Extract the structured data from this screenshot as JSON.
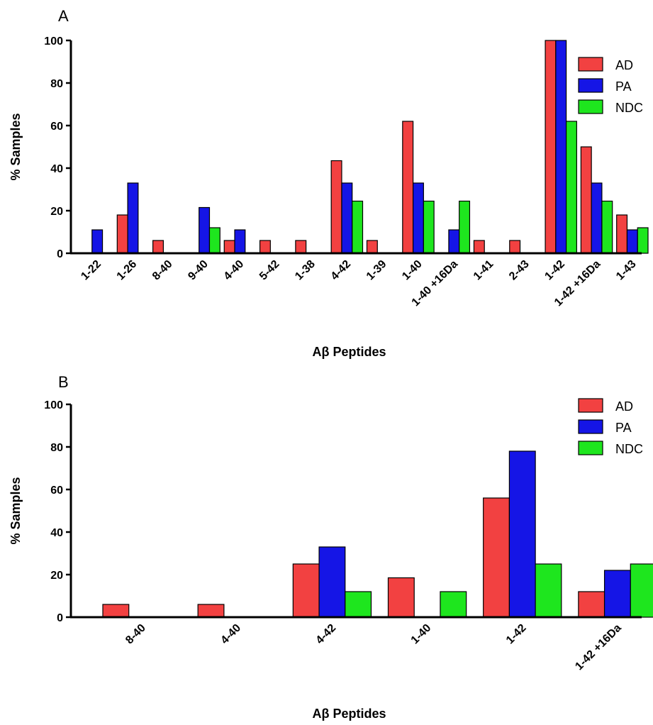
{
  "chart_data": [
    {
      "type": "bar",
      "panel_label": "A",
      "xlabel": "Aβ Peptides",
      "ylabel": "% Samples",
      "ylim": [
        0,
        100
      ],
      "yticks": [
        0,
        20,
        40,
        60,
        80,
        100
      ],
      "legend_position": "top-right",
      "categories": [
        "1-22",
        "1-26",
        "8-40",
        "9-40",
        "4-40",
        "5-42",
        "1-38",
        "4-42",
        "1-39",
        "1-40",
        "1-40 +16Da",
        "1-41",
        "2-43",
        "1-42",
        "1-42 +16Da",
        "1-43"
      ],
      "series": [
        {
          "name": "AD",
          "color": "#f24141",
          "values": [
            0,
            18,
            6,
            0,
            6,
            6,
            6,
            43.5,
            6,
            62,
            0,
            6,
            6,
            100,
            50,
            18
          ]
        },
        {
          "name": "PA",
          "color": "#1515e6",
          "values": [
            11,
            33,
            0,
            21.5,
            11,
            0,
            0,
            33,
            0,
            33,
            11,
            0,
            0,
            100,
            33,
            11
          ]
        },
        {
          "name": "NDC",
          "color": "#1ee61e",
          "values": [
            0,
            0,
            0,
            12,
            0,
            0,
            0,
            24.5,
            0,
            24.5,
            24.5,
            0,
            0,
            62,
            24.5,
            12
          ]
        }
      ]
    },
    {
      "type": "bar",
      "panel_label": "B",
      "xlabel": "Aβ Peptides",
      "ylabel": "% Samples",
      "ylim": [
        0,
        100
      ],
      "yticks": [
        0,
        20,
        40,
        60,
        80,
        100
      ],
      "legend_position": "top-right",
      "categories": [
        "8-40",
        "4-40",
        "4-42",
        "1-40",
        "1-42",
        "1-42 +16Da"
      ],
      "series": [
        {
          "name": "AD",
          "color": "#f24141",
          "values": [
            6,
            6,
            25,
            18.5,
            56,
            12
          ]
        },
        {
          "name": "PA",
          "color": "#1515e6",
          "values": [
            0,
            0,
            33,
            0,
            78,
            22
          ]
        },
        {
          "name": "NDC",
          "color": "#1ee61e",
          "values": [
            0,
            0,
            12,
            12,
            25,
            25
          ]
        }
      ]
    }
  ]
}
